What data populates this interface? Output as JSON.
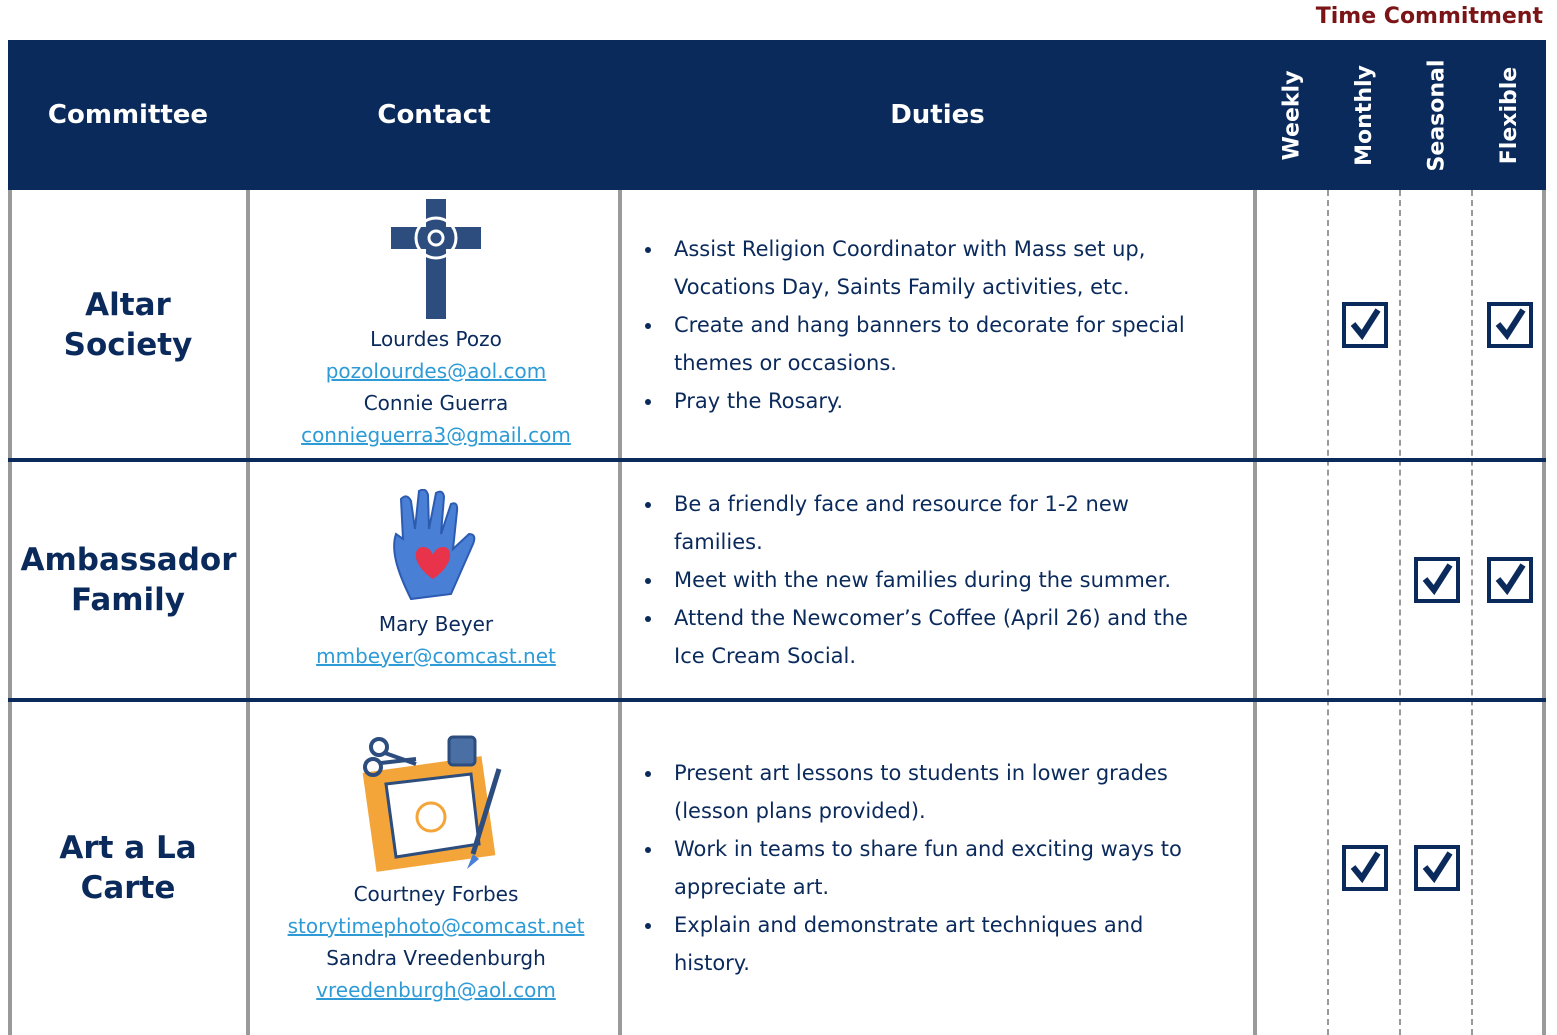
{
  "header": {
    "time_commitment": "Time Commitment",
    "committee": "Committee",
    "contact": "Contact",
    "duties": "Duties",
    "time_columns": [
      "Weekly",
      "Monthly",
      "Seasonal",
      "Flexible"
    ]
  },
  "rows": [
    {
      "committee": "Altar Society",
      "contacts": [
        {
          "name": "Lourdes Pozo",
          "email": "pozolourdes@aol.com"
        },
        {
          "name": "Connie Guerra",
          "email": "connieguerra3@gmail.com"
        }
      ],
      "duties": [
        "Assist Religion Coordinator with Mass set up, Vocations Day, Saints Family activities, etc.",
        "Create and hang banners to decorate for special themes or occasions.",
        "Pray the Rosary."
      ],
      "commitment": [
        false,
        true,
        false,
        true
      ]
    },
    {
      "committee": "Ambassador Family",
      "contacts": [
        {
          "name": "Mary Beyer",
          "email": "mmbeyer@comcast.net"
        }
      ],
      "duties": [
        "Be a friendly face and resource for 1-2 new families.",
        "Meet with the new families during the summer.",
        "Attend the Newcomer’s Coffee (April 26) and the Ice Cream Social."
      ],
      "commitment": [
        false,
        false,
        true,
        true
      ]
    },
    {
      "committee": "Art a La Carte",
      "contacts": [
        {
          "name": "Courtney Forbes",
          "email": "storytimephoto@comcast.net"
        },
        {
          "name": "Sandra Vreedenburgh",
          "email": "vreedenburgh@aol.com"
        }
      ],
      "duties": [
        "Present art lessons to students in lower grades (lesson plans provided).",
        "Work in teams to share fun and exciting ways to appreciate art.",
        "Explain and demonstrate art techniques and history."
      ],
      "commitment": [
        false,
        true,
        true,
        false
      ]
    }
  ]
}
